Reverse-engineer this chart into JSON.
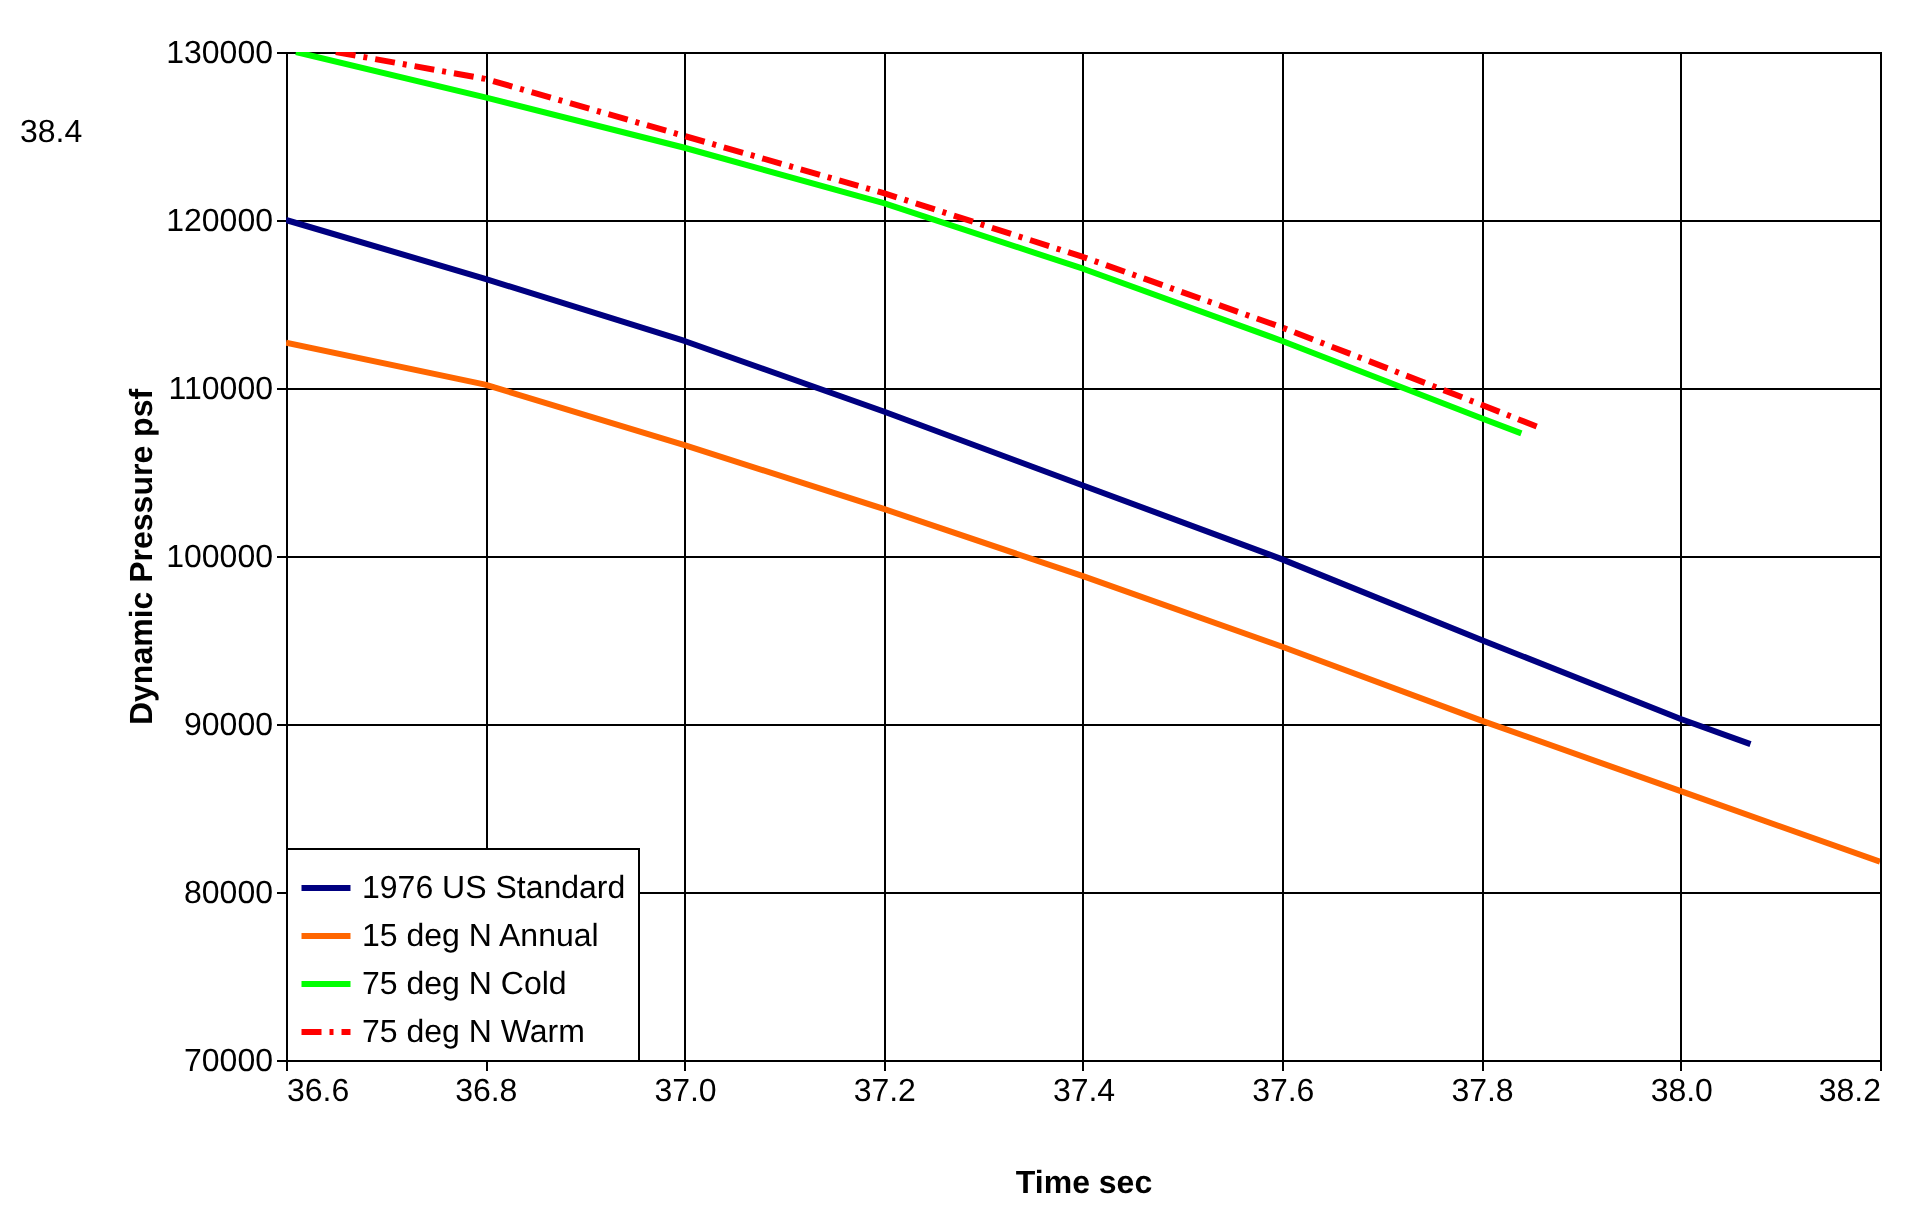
{
  "chart_data": {
    "type": "line",
    "xlabel": "Time sec",
    "ylabel": "Dynamic Pressure  psf",
    "xlim": [
      36.6,
      38.2
    ],
    "xticks": [
      {
        "value": 36.6,
        "label": "36.6"
      },
      {
        "value": 36.8,
        "label": "36.8"
      },
      {
        "value": 37.0,
        "label": "37.0"
      },
      {
        "value": 37.2,
        "label": "37.2"
      },
      {
        "value": 37.4,
        "label": "37.4"
      },
      {
        "value": 37.6,
        "label": "37.6"
      },
      {
        "value": 37.8,
        "label": "37.8"
      },
      {
        "value": 38.0,
        "label": "38.0"
      },
      {
        "value": 38.2,
        "label": "38.2"
      }
    ],
    "ylim": [
      70000,
      130000
    ],
    "yticks": [
      70000,
      80000,
      90000,
      100000,
      110000,
      120000,
      130000
    ],
    "grid": true,
    "legend": "bottom left",
    "annotations": [
      "38.4"
    ],
    "series": [
      {
        "name": "1976 US Standard",
        "color": "#000080",
        "line_style": "solid",
        "x": [
          36.6,
          36.8,
          37.0,
          37.2,
          37.4,
          37.6,
          37.8,
          38.0,
          38.07
        ],
        "values": [
          120000,
          116500,
          112800,
          108600,
          104200,
          99800,
          95000,
          90300,
          88800
        ]
      },
      {
        "name": "15 deg N Annual",
        "color": "#ff6600",
        "line_style": "solid",
        "x": [
          36.6,
          36.8,
          37.0,
          37.2,
          37.4,
          37.6,
          37.8,
          38.0,
          38.2
        ],
        "values": [
          112700,
          110200,
          106600,
          102800,
          98800,
          94600,
          90200,
          86000,
          81800
        ]
      },
      {
        "name": "75 deg N Cold",
        "color": "#00ff00",
        "line_style": "solid",
        "x": [
          36.61,
          36.8,
          37.0,
          37.2,
          37.4,
          37.6,
          37.8,
          37.84
        ],
        "values": [
          130000,
          127300,
          124300,
          121000,
          117100,
          112800,
          108200,
          107300
        ]
      },
      {
        "name": "75 deg N Warm",
        "color": "#ff0000",
        "line_style": "dashed",
        "x": [
          36.65,
          36.8,
          37.0,
          37.2,
          37.4,
          37.6,
          37.8,
          37.86
        ],
        "values": [
          130000,
          128400,
          125000,
          121600,
          117800,
          113600,
          109000,
          107600
        ]
      }
    ]
  }
}
